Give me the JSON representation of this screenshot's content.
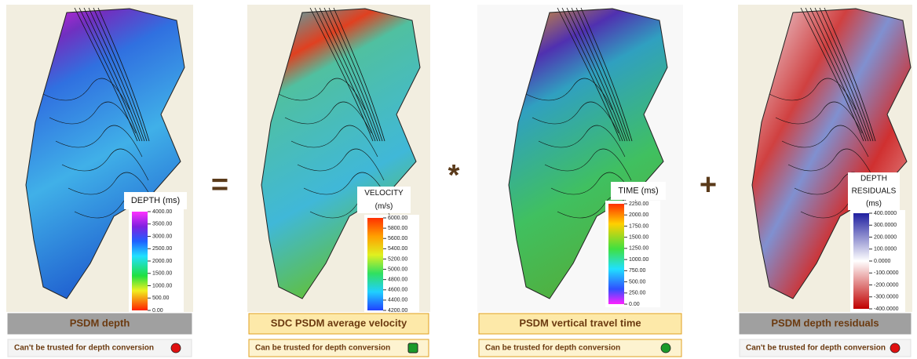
{
  "operators": [
    "=",
    "*",
    "+"
  ],
  "panels": [
    {
      "caption": "PSDM depth",
      "legend": {
        "title": [
          "DEPTH (ms)"
        ],
        "ticks": [
          "4000.00",
          "3500.00",
          "3000.00",
          "2500.00",
          "2000.00",
          "1500.00",
          "1000.00",
          "500.00",
          "0.00"
        ]
      },
      "status": "Can't be trusted for depth conversion"
    },
    {
      "caption": "SDC PSDM average velocity",
      "legend": {
        "title": [
          "VELOCITY",
          "(m/s)"
        ],
        "ticks": [
          "6000.00",
          "5800.00",
          "5600.00",
          "5400.00",
          "5200.00",
          "5000.00",
          "4800.00",
          "4600.00",
          "4400.00",
          "4200.00"
        ]
      },
      "status": "Can be trusted for depth conversion"
    },
    {
      "caption": "PSDM vertical travel time",
      "legend": {
        "title": [
          "TIME (ms)"
        ],
        "ticks": [
          "2250.00",
          "2000.00",
          "1750.00",
          "1500.00",
          "1250.00",
          "1000.00",
          "750.00",
          "500.00",
          "250.00",
          "0.00"
        ]
      },
      "status": "Can be trusted for depth conversion"
    },
    {
      "caption": "PSDM depth residuals",
      "legend": {
        "title": [
          "DEPTH",
          "RESIDUALS",
          "(ms)"
        ],
        "ticks": [
          "400.0000",
          "300.0000",
          "200.0000",
          "100.0000",
          "0.0000",
          "-100.0000",
          "-200.0000",
          "-300.0000",
          "-400.0000"
        ]
      },
      "status": "Can't be trusted for depth conversion"
    }
  ]
}
